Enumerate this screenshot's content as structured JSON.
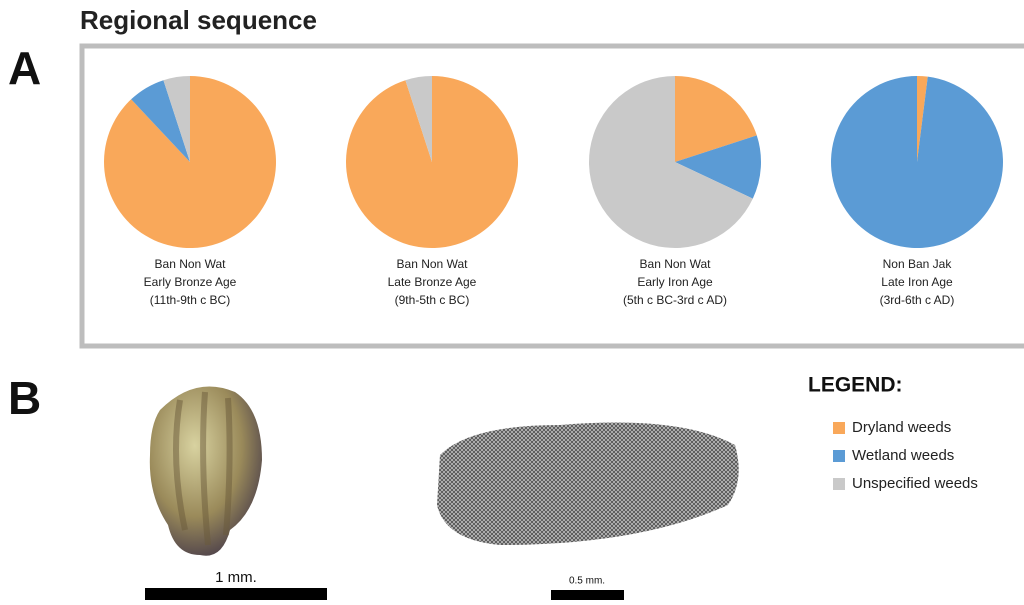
{
  "title": "Regional sequence",
  "panels": [
    "A",
    "B"
  ],
  "legend": {
    "title": "LEGEND:",
    "items": [
      {
        "name": "Dryland weeds",
        "color": "#f9a85a"
      },
      {
        "name": "Wetland weeds",
        "color": "#5b9bd5"
      },
      {
        "name": "Unspecified weeds",
        "color": "#c9c9c9"
      }
    ]
  },
  "scale_bars": [
    "1 mm.",
    "0.5 mm."
  ],
  "chart_data": [
    {
      "type": "pie",
      "caption": [
        "Ban Non Wat",
        "Early Bronze Age",
        "(11th-9th c BC)"
      ],
      "values": [
        88,
        7,
        5
      ]
    },
    {
      "type": "pie",
      "caption": [
        "Ban Non Wat",
        "Late Bronze Age",
        "(9th-5th c BC)"
      ],
      "values": [
        95,
        0,
        5
      ]
    },
    {
      "type": "pie",
      "caption": [
        "Ban Non Wat",
        "Early Iron Age",
        "(5th c BC-3rd c AD)"
      ],
      "values": [
        20,
        12,
        68
      ]
    },
    {
      "type": "pie",
      "caption": [
        "Non Ban Jak",
        "Late  Iron Age",
        "(3rd-6th c AD)"
      ],
      "values": [
        2,
        98,
        0
      ]
    }
  ]
}
